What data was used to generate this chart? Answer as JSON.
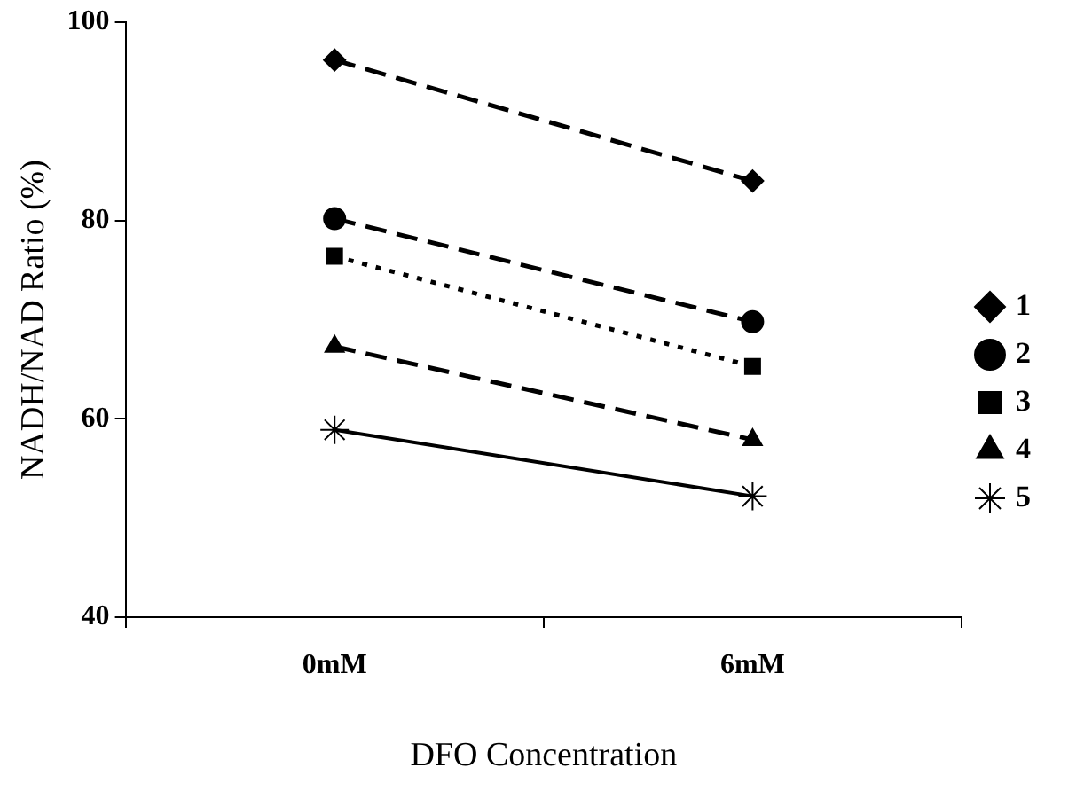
{
  "chart_data": {
    "type": "line",
    "xlabel": "DFO Concentration",
    "ylabel": "NADH/NAD Ratio (%)",
    "categories": [
      "0mM",
      "6mM"
    ],
    "series": [
      {
        "name": "1",
        "color": "#000000",
        "values": [
          96.2,
          84.0
        ],
        "marker": "diamond",
        "line_style": "dashed"
      },
      {
        "name": "2",
        "color": "#000000",
        "values": [
          80.2,
          69.8
        ],
        "marker": "circle",
        "line_style": "dashed"
      },
      {
        "name": "3",
        "color": "#000000",
        "values": [
          76.4,
          65.3
        ],
        "marker": "square",
        "line_style": "dotted"
      },
      {
        "name": "4",
        "color": "#000000",
        "values": [
          67.3,
          57.9
        ],
        "marker": "triangle",
        "line_style": "dashed"
      },
      {
        "name": "5",
        "color": "#000000",
        "values": [
          58.9,
          52.2
        ],
        "marker": "cross",
        "line_style": "solid"
      }
    ],
    "ylim": [
      40,
      100
    ],
    "yticks": [
      40,
      60,
      80,
      100
    ],
    "grid": false,
    "legend": "right"
  }
}
